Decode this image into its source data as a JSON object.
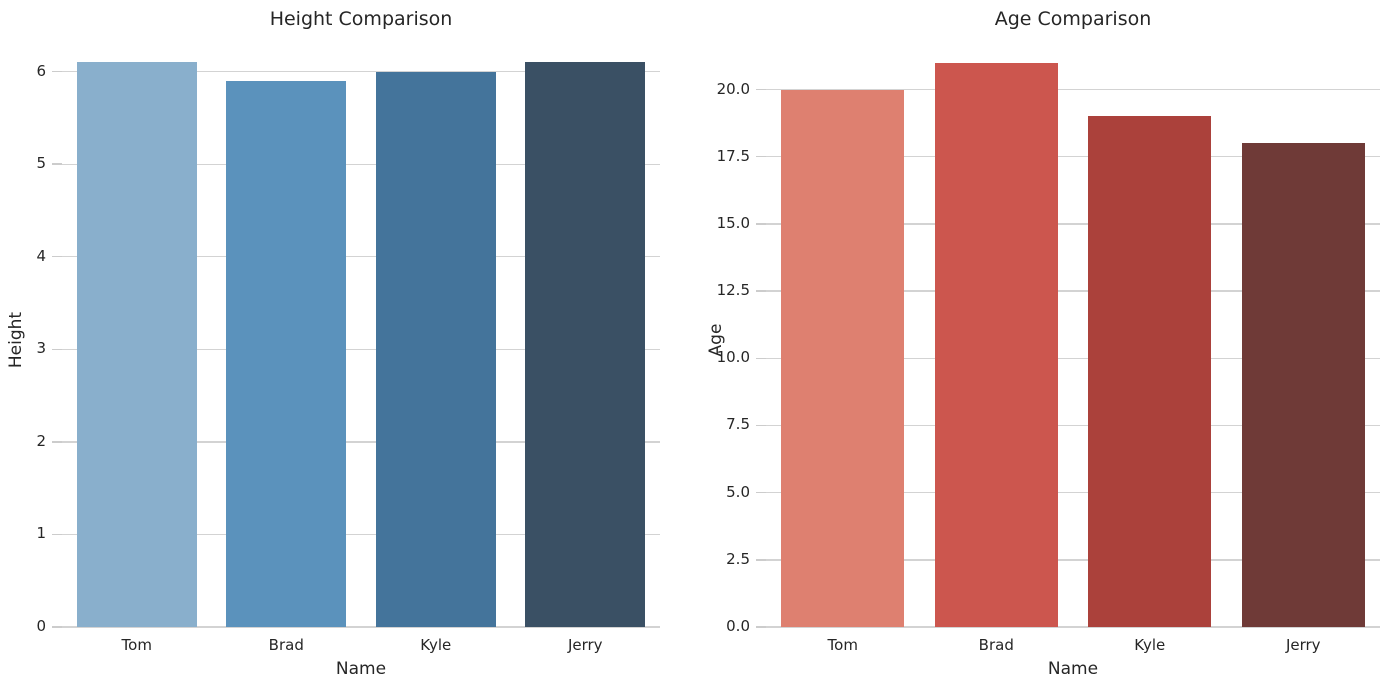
{
  "figure": {
    "background": "#ffffff",
    "text_color": "#262626",
    "grid_color": "#d3d3d3",
    "tick_color": "#cccccc"
  },
  "chart_data": [
    {
      "type": "bar",
      "title": "Height Comparison",
      "xlabel": "Name",
      "ylabel": "Height",
      "categories": [
        "Tom",
        "Brad",
        "Kyle",
        "Jerry"
      ],
      "values": [
        6.1,
        5.9,
        6.0,
        6.1
      ],
      "bar_colors": [
        "#89AFCC",
        "#5B92BC",
        "#44749B",
        "#3A5064"
      ],
      "yticks": [
        0,
        1,
        2,
        3,
        4,
        5,
        6
      ],
      "ytick_labels": [
        "0",
        "1",
        "2",
        "3",
        "4",
        "5",
        "6"
      ],
      "ylim": [
        0,
        6.32
      ],
      "grid": "horizontal",
      "legend": "none"
    },
    {
      "type": "bar",
      "title": "Age Comparison",
      "xlabel": "Name",
      "ylabel": "Age",
      "categories": [
        "Tom",
        "Brad",
        "Kyle",
        "Jerry"
      ],
      "values": [
        20,
        21,
        19,
        18
      ],
      "bar_colors": [
        "#DE8070",
        "#CC564E",
        "#AB413B",
        "#6F3A37"
      ],
      "yticks": [
        0,
        2.5,
        5,
        7.5,
        10,
        12.5,
        15,
        17.5,
        20
      ],
      "ytick_labels": [
        "0.0",
        "2.5",
        "5.0",
        "7.5",
        "10.0",
        "12.5",
        "15.0",
        "17.5",
        "20.0"
      ],
      "ylim": [
        0,
        21.77
      ],
      "grid": "horizontal",
      "legend": "none"
    }
  ]
}
